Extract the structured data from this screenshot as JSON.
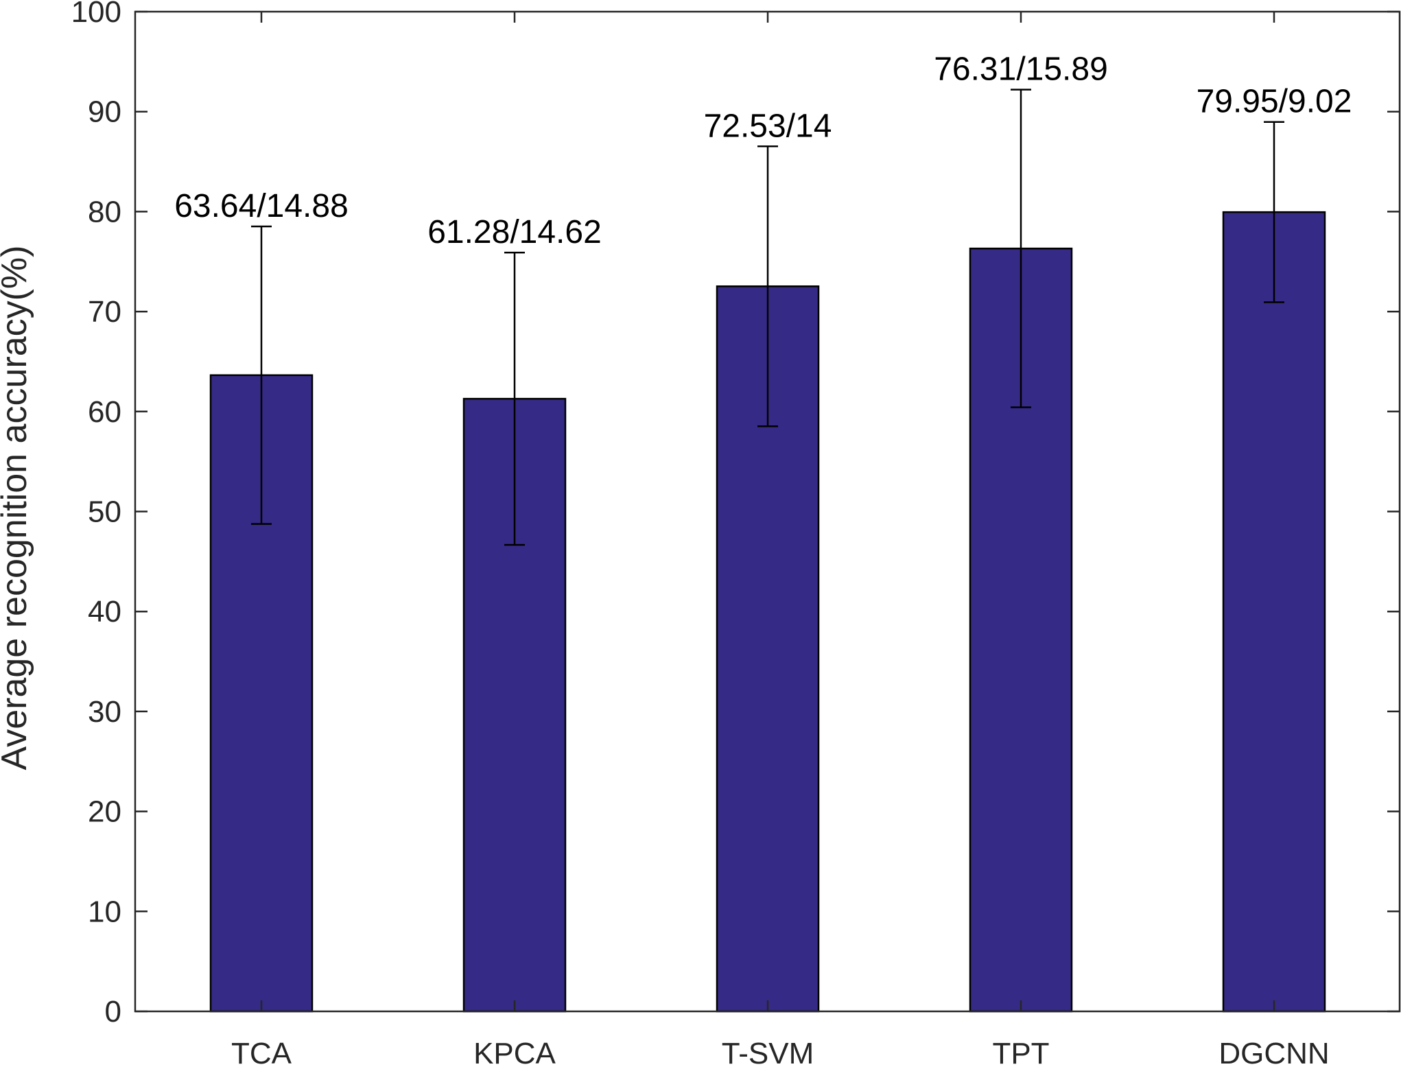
{
  "chart_data": {
    "type": "bar",
    "title": "",
    "xlabel": "",
    "ylabel": "Average recognition accuracy(%)",
    "categories": [
      "TCA",
      "KPCA",
      "T-SVM",
      "TPT",
      "DGCNN"
    ],
    "values": [
      63.64,
      61.28,
      72.53,
      76.31,
      79.95
    ],
    "errors": [
      14.88,
      14.62,
      14,
      15.89,
      9.02
    ],
    "data_labels": [
      "63.64/14.88",
      "61.28/14.62",
      "72.53/14",
      "76.31/15.89",
      "79.95/9.02"
    ],
    "ylim": [
      0,
      100
    ],
    "yticks": [
      0,
      10,
      20,
      30,
      40,
      50,
      60,
      70,
      80,
      90,
      100
    ],
    "grid": false,
    "bar_color": "#352a86",
    "axis_color": "#262626"
  }
}
